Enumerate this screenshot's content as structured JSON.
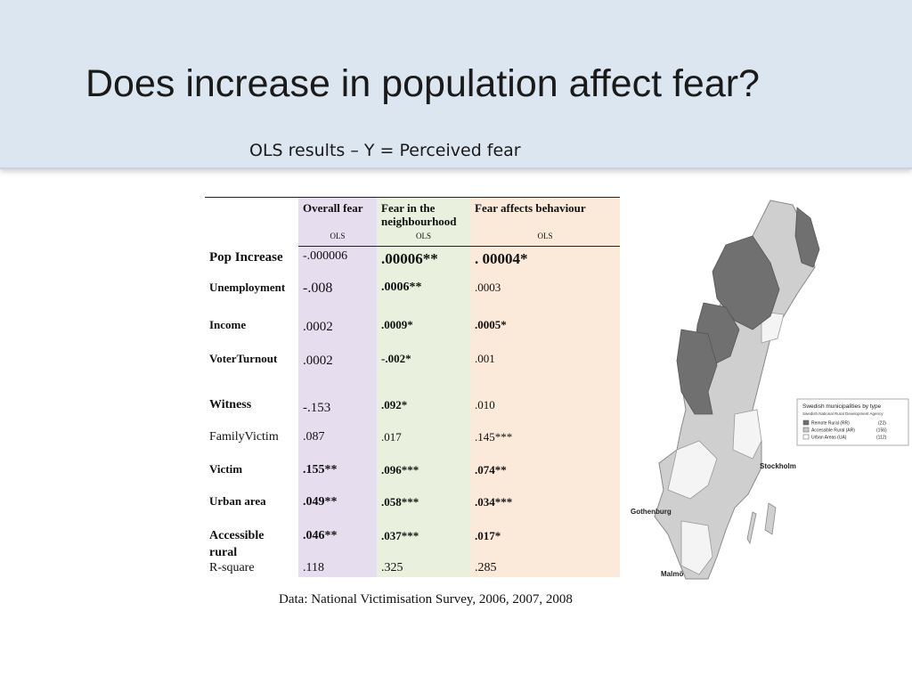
{
  "slide": {
    "title": "Does increase in population affect fear?",
    "subtitle": "OLS results – Y = Perceived fear",
    "source": "Data: National Victimisation Survey, 2006, 2007, 2008"
  },
  "table": {
    "columns": [
      "Overall fear",
      "Fear in the neighbourhood",
      "Fear affects behaviour"
    ],
    "method": "OLS",
    "rows": [
      {
        "label": "Pop Increase",
        "values": [
          "-.000006",
          ".00006**",
          ". 00004*"
        ]
      },
      {
        "label": "Unemployment",
        "values": [
          "-.008",
          ".0006**",
          ".0003"
        ]
      },
      {
        "label": "Income",
        "values": [
          ".0002",
          ".0009*",
          ".0005*"
        ]
      },
      {
        "label": "VoterTurnout",
        "values": [
          ".0002",
          "-.002*",
          ".001"
        ]
      },
      {
        "label": "Witness",
        "values": [
          "-.153",
          ".092*",
          ".010"
        ]
      },
      {
        "label": "FamilyVictim",
        "values": [
          ".087",
          ".017",
          ".145***"
        ]
      },
      {
        "label": "Victim",
        "values": [
          ".155**",
          ".096***",
          ".074**"
        ]
      },
      {
        "label": "Urban area",
        "values": [
          ".049**",
          ".058***",
          ".034***"
        ]
      },
      {
        "label": "Accessible rural",
        "values": [
          ".046**",
          ".037***",
          ".017*"
        ]
      },
      {
        "label": "R-square",
        "values": [
          ".118",
          ".325",
          ".285"
        ]
      }
    ]
  },
  "map": {
    "legend_title": "Swedish municipalities by type",
    "legend_subtitle": "Swedish National Rural Development Agency",
    "legend_items": [
      {
        "label": "Remote Rural (RR)",
        "count": "(22)",
        "color": "#6e6e6e"
      },
      {
        "label": "Accessible Rural (AR)",
        "count": "(156)",
        "color": "#c9c9c9"
      },
      {
        "label": "Urban Areas (UA)",
        "count": "(112)",
        "color": "#ffffff"
      }
    ],
    "cities": [
      "Stockholm",
      "Gothenburg",
      "Malmö"
    ]
  }
}
